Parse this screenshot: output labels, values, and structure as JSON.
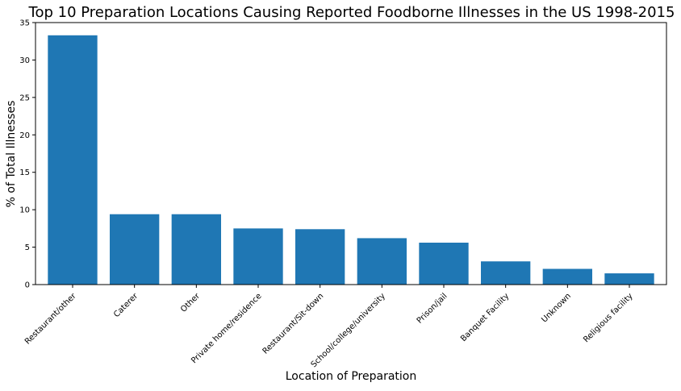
{
  "chart_data": {
    "type": "bar",
    "title": "Top 10 Preparation Locations Causing Reported Foodborne Illnesses in the US 1998-2015",
    "xlabel": "Location of Preparation",
    "ylabel": "% of Total Illnesses",
    "categories": [
      "Restaurant/other",
      "Caterer",
      "Other",
      "Private home/residence",
      "Restaurant/Sit-down",
      "School/college/university",
      "Prison/jail",
      "Banquet Facility",
      "Unknown",
      "Religious facility"
    ],
    "values": [
      33.3,
      9.4,
      9.4,
      7.5,
      7.4,
      6.2,
      5.6,
      3.1,
      2.1,
      1.5
    ],
    "ylim": [
      0,
      35
    ],
    "yticks": [
      0,
      5,
      10,
      15,
      20,
      25,
      30,
      35
    ],
    "bar_color": "#1f77b4",
    "grid": false,
    "legend": "none"
  }
}
